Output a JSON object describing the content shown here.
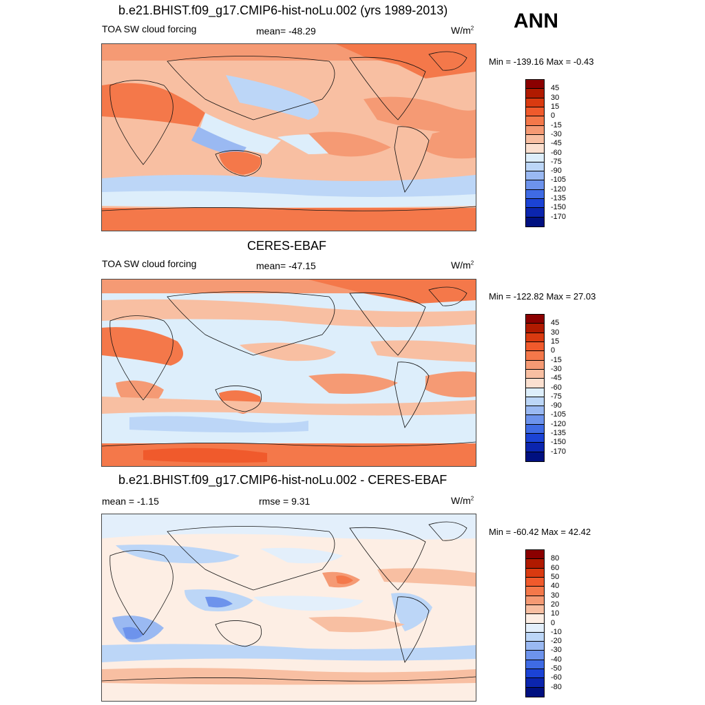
{
  "season": "ANN",
  "panels": [
    {
      "title": "b.e21.BHIST.f09_g17.CMIP6-hist-noLu.002 (yrs 1989-2013)",
      "left_label": "TOA SW cloud forcing",
      "center_label": "mean= -48.29",
      "units_base": "W/m",
      "units_exp": "2",
      "minmax": "Min = -139.16 Max =  -0.43",
      "colorbar": {
        "labels": [
          "45",
          "30",
          "15",
          "0",
          "-15",
          "-30",
          "-45",
          "-60",
          "-75",
          "-90",
          "-105",
          "-120",
          "-135",
          "-150",
          "-170"
        ],
        "colors": [
          "#8b0000",
          "#b01a00",
          "#d93a10",
          "#f05a2c",
          "#f4784a",
          "#f59a74",
          "#f8bfa2",
          "#fbe0d0",
          "#ddeefb",
          "#bcd6f7",
          "#9ab9f2",
          "#6d93ec",
          "#3f6be4",
          "#1b43d5",
          "#0b25ae",
          "#001080"
        ]
      }
    },
    {
      "title": "CERES-EBAF",
      "left_label": "TOA SW cloud forcing",
      "center_label": "mean= -47.15",
      "units_base": "W/m",
      "units_exp": "2",
      "minmax": "Min = -122.82 Max =  27.03",
      "colorbar": {
        "labels": [
          "45",
          "30",
          "15",
          "0",
          "-15",
          "-30",
          "-45",
          "-60",
          "-75",
          "-90",
          "-105",
          "-120",
          "-135",
          "-150",
          "-170"
        ],
        "colors": [
          "#8b0000",
          "#b01a00",
          "#d93a10",
          "#f05a2c",
          "#f4784a",
          "#f59a74",
          "#f8bfa2",
          "#fbe0d0",
          "#ddeefb",
          "#bcd6f7",
          "#9ab9f2",
          "#6d93ec",
          "#3f6be4",
          "#1b43d5",
          "#0b25ae",
          "#001080"
        ]
      }
    },
    {
      "title": "b.e21.BHIST.f09_g17.CMIP6-hist-noLu.002 - CERES-EBAF",
      "left_label": "mean =  -1.15",
      "center_label": "rmse =   9.31",
      "units_base": "W/m",
      "units_exp": "2",
      "minmax": "Min = -60.42 Max =  42.42",
      "colorbar": {
        "labels": [
          "80",
          "60",
          "50",
          "40",
          "30",
          "20",
          "10",
          "0",
          "-10",
          "-20",
          "-30",
          "-40",
          "-50",
          "-60",
          "-80"
        ],
        "colors": [
          "#8b0000",
          "#b01a00",
          "#d93a10",
          "#f05a2c",
          "#f4784a",
          "#f59a74",
          "#f8bfa2",
          "#fdeee4",
          "#e3effb",
          "#bcd6f7",
          "#9ab9f2",
          "#6d93ec",
          "#3f6be4",
          "#1b43d5",
          "#0b25ae",
          "#001080"
        ]
      }
    }
  ]
}
